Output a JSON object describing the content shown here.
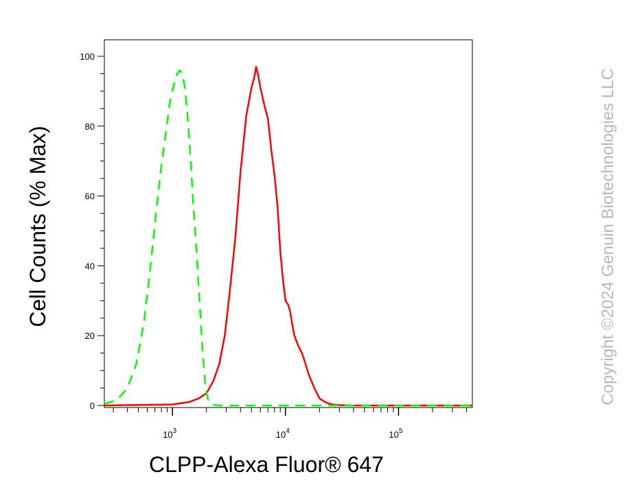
{
  "watermark": "Copyright ©2024 Genuin Biotechnologies LLC",
  "chart_data": {
    "type": "line",
    "title": "",
    "xlabel": "CLPP-Alexa Fluor® 647",
    "ylabel": "Cell Counts (% Max)",
    "xscale": "log",
    "xlim": [
      250,
      450000
    ],
    "ylim": [
      0,
      100
    ],
    "y_ticks": [
      0,
      20,
      40,
      60,
      80,
      100
    ],
    "x_ticks": [
      {
        "value": 1000,
        "base": "10",
        "exp": "3"
      },
      {
        "value": 10000,
        "base": "10",
        "exp": "4"
      },
      {
        "value": 100000,
        "base": "10",
        "exp": "5"
      }
    ],
    "grid": false,
    "legend": "none",
    "series": [
      {
        "color": "#ff0000",
        "style": "solid",
        "x": [
          250,
          1000,
          1400,
          1700,
          2000,
          2300,
          2600,
          2900,
          3200,
          3600,
          4000,
          4500,
          5000,
          5300,
          5500,
          5700,
          6000,
          6500,
          7000,
          7500,
          8000,
          8500,
          9000,
          9500,
          10000,
          10500,
          11000,
          11500,
          12000,
          13000,
          14000,
          15000,
          16000,
          18000,
          20000,
          23000,
          26000,
          30000,
          40000,
          100000,
          450000
        ],
        "y": [
          0,
          0.3,
          1,
          2,
          3.5,
          7,
          12,
          20,
          32,
          48,
          67,
          83,
          91,
          94,
          97,
          95,
          91,
          86,
          82,
          73,
          66,
          57,
          44,
          36,
          30,
          29,
          27,
          23,
          20,
          17,
          15,
          12,
          9,
          5,
          2,
          0.8,
          0.3,
          0.1,
          0,
          0,
          0
        ]
      },
      {
        "color": "#00ff00",
        "style": "dashed",
        "x": [
          250,
          320,
          400,
          480,
          560,
          640,
          720,
          800,
          880,
          950,
          1030,
          1100,
          1160,
          1220,
          1290,
          1370,
          1450,
          1540,
          1640,
          1750,
          1860,
          1960,
          2050,
          2150,
          2300,
          2600,
          3000,
          5000,
          10000,
          50000,
          450000
        ],
        "y": [
          0.5,
          1.5,
          5,
          12,
          24,
          40,
          56,
          69,
          79,
          87,
          92,
          95,
          96,
          95,
          91,
          82,
          70,
          56,
          43,
          28,
          14,
          5,
          2,
          0.5,
          0.2,
          0,
          0,
          0,
          0,
          0,
          0
        ]
      }
    ]
  }
}
